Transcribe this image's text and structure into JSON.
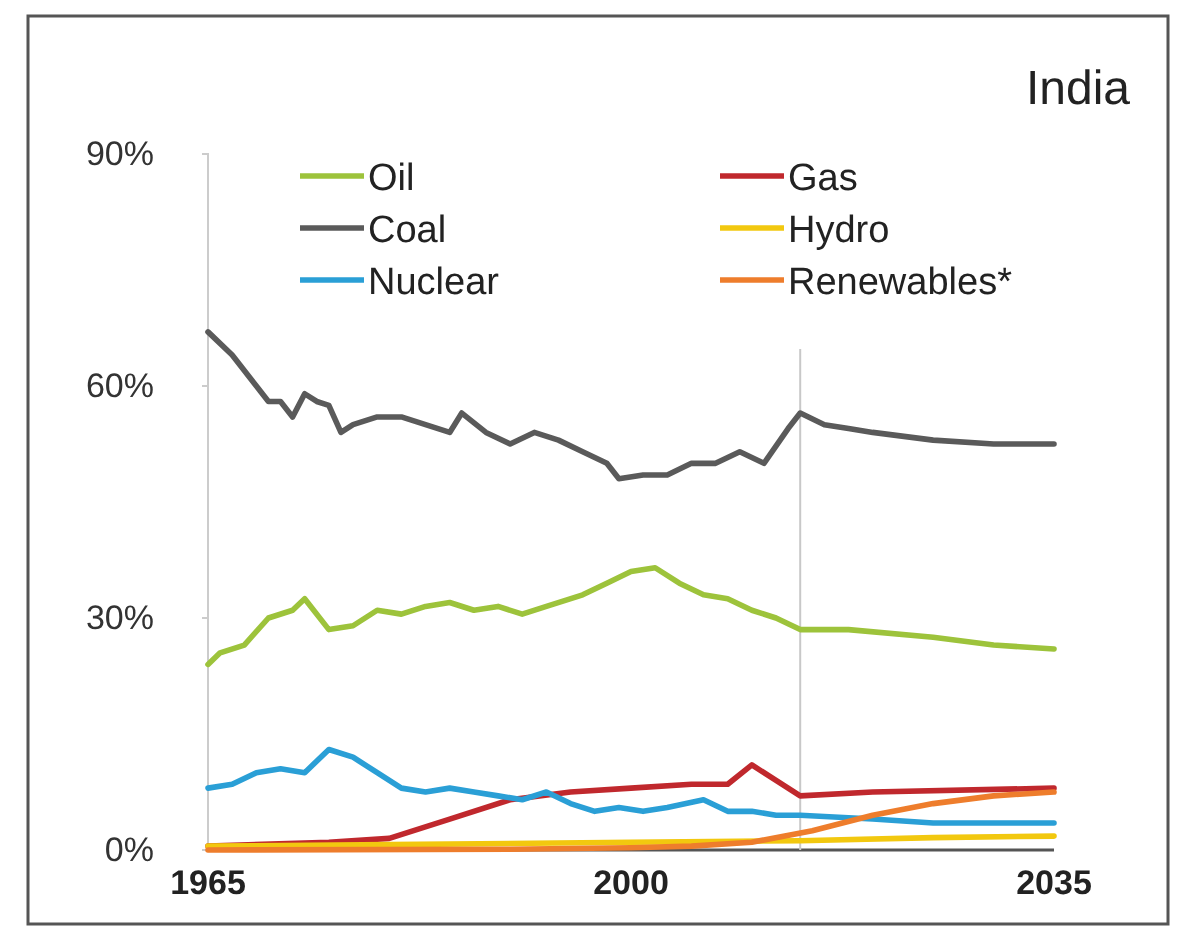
{
  "chart_data": {
    "type": "line",
    "title": "India",
    "xlim": [
      1965,
      2035
    ],
    "ylim": [
      0,
      90
    ],
    "xticks": [
      1965,
      2000,
      2035
    ],
    "yticks": [
      {
        "value": 0,
        "label": "0%"
      },
      {
        "value": 30,
        "label": "30%"
      },
      {
        "value": 60,
        "label": "60%"
      },
      {
        "value": 90,
        "label": "90%"
      }
    ],
    "grid": false,
    "legend": "top left",
    "line_style": "solid",
    "marker": "none",
    "ref_lines": [
      {
        "axis": "x",
        "value": 2014,
        "color": "#c8c8c8"
      }
    ],
    "series": [
      {
        "name": "Oil",
        "color": "#9dc33b",
        "x": [
          1965,
          1966,
          1968,
          1970,
          1972,
          1973,
          1975,
          1977,
          1979,
          1981,
          1983,
          1985,
          1987,
          1989,
          1991,
          1993,
          1996,
          1998,
          2000,
          2002,
          2004,
          2006,
          2008,
          2010,
          2012,
          2014,
          2018,
          2025,
          2030,
          2035
        ],
        "values": [
          24,
          25.5,
          26.5,
          30,
          31,
          32.5,
          28.5,
          29,
          31,
          30.5,
          31.5,
          32,
          31,
          31.5,
          30.5,
          31.5,
          33,
          34.5,
          36,
          36.5,
          34.5,
          33,
          32.5,
          31,
          30,
          28.5,
          28.5,
          27.5,
          26.5,
          26
        ]
      },
      {
        "name": "Gas",
        "color": "#c0282d",
        "x": [
          1965,
          1975,
          1980,
          1985,
          1990,
          1995,
          2000,
          2005,
          2008,
          2010,
          2012,
          2014,
          2020,
          2035
        ],
        "values": [
          0.5,
          1,
          1.5,
          4,
          6.5,
          7.5,
          8,
          8.5,
          8.5,
          11,
          9,
          7,
          7.5,
          8
        ]
      },
      {
        "name": "Coal",
        "color": "#5a5a5a",
        "x": [
          1965,
          1967,
          1969,
          1970,
          1971,
          1972,
          1973,
          1974,
          1975,
          1976,
          1977,
          1979,
          1981,
          1983,
          1985,
          1986,
          1988,
          1990,
          1992,
          1994,
          1996,
          1998,
          1999,
          2001,
          2003,
          2005,
          2007,
          2009,
          2011,
          2013,
          2014,
          2016,
          2018,
          2020,
          2025,
          2030,
          2035
        ],
        "values": [
          67,
          64,
          60,
          58,
          58,
          56,
          59,
          58,
          57.5,
          54,
          55,
          56,
          56,
          55,
          54,
          56.5,
          54,
          52.5,
          54,
          53,
          51.5,
          50,
          48,
          48.5,
          48.5,
          50,
          50,
          51.5,
          50,
          54.5,
          56.5,
          55,
          54.5,
          54,
          53,
          52.5,
          52.5
        ]
      },
      {
        "name": "Hydro",
        "color": "#f2c80f",
        "x": [
          1965,
          1980,
          2000,
          2014,
          2025,
          2035
        ],
        "values": [
          0.5,
          0.7,
          1,
          1.2,
          1.6,
          1.8
        ]
      },
      {
        "name": "Nuclear",
        "color": "#2a9fd6",
        "x": [
          1965,
          1967,
          1969,
          1971,
          1973,
          1975,
          1977,
          1979,
          1981,
          1983,
          1985,
          1987,
          1989,
          1991,
          1993,
          1995,
          1997,
          1999,
          2001,
          2003,
          2006,
          2008,
          2010,
          2012,
          2014,
          2020,
          2025,
          2035
        ],
        "values": [
          8,
          8.5,
          10,
          10.5,
          10,
          13,
          12,
          10,
          8,
          7.5,
          8,
          7.5,
          7,
          6.5,
          7.5,
          6,
          5,
          5.5,
          5,
          5.5,
          6.5,
          5,
          5,
          4.5,
          4.5,
          4,
          3.5,
          3.5
        ]
      },
      {
        "name": "Renewables*",
        "color": "#ee7d2c",
        "x": [
          1965,
          1990,
          2000,
          2005,
          2010,
          2015,
          2020,
          2025,
          2030,
          2035
        ],
        "values": [
          0,
          0.1,
          0.3,
          0.5,
          1,
          2.5,
          4.5,
          6,
          7,
          7.5
        ]
      }
    ]
  }
}
